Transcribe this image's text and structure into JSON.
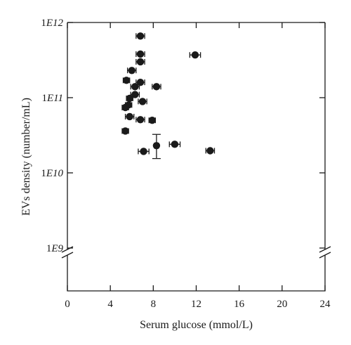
{
  "chart_data": {
    "type": "scatter",
    "title": "",
    "xlabel": "Serum glucose (mmol/L)",
    "ylabel": "EVs density (number/mL)",
    "xlim": [
      0,
      24
    ],
    "ylim": [
      1000000000.0,
      1000000000000.0
    ],
    "y_scale": "log",
    "y_axis_break": true,
    "grid": false,
    "legend": "none",
    "marker_color": "#1a1a1a",
    "x_ticks": [
      0,
      4,
      8,
      12,
      16,
      20,
      24
    ],
    "x_tick_labels": [
      "0",
      "4",
      "8",
      "12",
      "16",
      "20",
      "24"
    ],
    "y_ticks": [
      1000000000.0,
      10000000000.0,
      100000000000.0,
      1000000000000.0
    ],
    "y_tick_labels": [
      {
        "base": "1",
        "exp": "E9"
      },
      {
        "base": "1",
        "exp": "E10"
      },
      {
        "base": "1",
        "exp": "E11"
      },
      {
        "base": "1",
        "exp": "E12"
      }
    ],
    "points": [
      {
        "x": 6.8,
        "y": 660000000000.0,
        "xerr": 0.4
      },
      {
        "x": 6.8,
        "y": 380000000000.0,
        "xerr": 0.4
      },
      {
        "x": 6.8,
        "y": 300000000000.0,
        "xerr": 0.4
      },
      {
        "x": 6.0,
        "y": 230000000000.0,
        "xerr": 0.4
      },
      {
        "x": 11.9,
        "y": 370000000000.0,
        "xerr": 0.5
      },
      {
        "x": 5.5,
        "y": 170000000000.0,
        "xerr": 0.3
      },
      {
        "x": 6.8,
        "y": 160000000000.0,
        "xerr": 0.4
      },
      {
        "x": 6.3,
        "y": 140000000000.0,
        "xerr": 0.4
      },
      {
        "x": 8.3,
        "y": 140000000000.0,
        "xerr": 0.4
      },
      {
        "x": 6.3,
        "y": 110000000000.0,
        "xerr": 0.4
      },
      {
        "x": 5.8,
        "y": 98000000000.0,
        "xerr": 0.3
      },
      {
        "x": 7.0,
        "y": 89000000000.0,
        "xerr": 0.4
      },
      {
        "x": 5.7,
        "y": 80000000000.0,
        "xerr": 0.3
      },
      {
        "x": 5.4,
        "y": 74000000000.0,
        "xerr": 0.3
      },
      {
        "x": 5.8,
        "y": 56000000000.0,
        "xerr": 0.4
      },
      {
        "x": 6.8,
        "y": 51000000000.0,
        "xerr": 0.4
      },
      {
        "x": 7.9,
        "y": 50000000000.0,
        "xerr": 0.3
      },
      {
        "x": 5.4,
        "y": 36000000000.0,
        "xerr": 0.3
      },
      {
        "x": 10.0,
        "y": 24000000000.0,
        "xerr": 0.5
      },
      {
        "x": 8.3,
        "y": 23000000000.0,
        "xerr": 0.2,
        "yerr": [
          15500000000.0,
          32500000000.0
        ]
      },
      {
        "x": 7.1,
        "y": 19300000000.0,
        "xerr": 0.5
      },
      {
        "x": 13.3,
        "y": 19700000000.0,
        "xerr": 0.4
      }
    ]
  }
}
